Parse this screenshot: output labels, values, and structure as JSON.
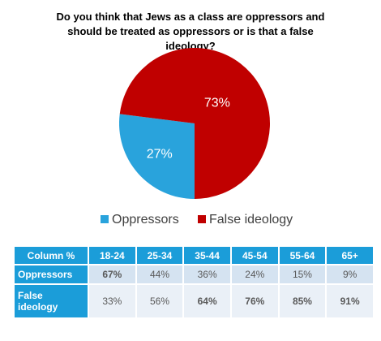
{
  "chart_data": {
    "type": "pie",
    "title": "Do you think that Jews as a class are oppressors and should be treated as oppressors or is that a false ideology?",
    "categories": [
      "Oppressors",
      "False ideology"
    ],
    "values": [
      27,
      73
    ],
    "value_labels": [
      "27%",
      "73%"
    ],
    "colors": [
      "#29a3dc",
      "#c00000"
    ],
    "legend": "bottom"
  },
  "table": {
    "header": [
      "Column %",
      "18-24",
      "25-34",
      "35-44",
      "45-54",
      "55-64",
      "65+"
    ],
    "rows": [
      [
        "Oppressors",
        "67%",
        "44%",
        "36%",
        "24%",
        "15%",
        "9%"
      ],
      [
        "False ideology",
        "33%",
        "56%",
        "64%",
        "76%",
        "85%",
        "91%"
      ]
    ]
  }
}
